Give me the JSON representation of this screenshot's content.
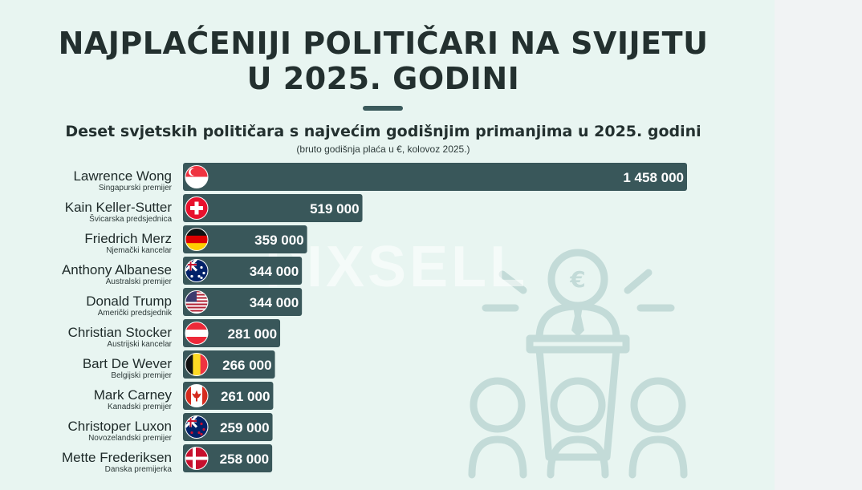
{
  "title_line1": "NAJPLAĆENIJI POLITIČARI NA SVIJETU",
  "title_line2": "U 2025. GODINI",
  "subtitle": "Deset svjetskih političara s najvećim godišnjim primanjima u 2025. godini",
  "note": "(bruto godišnja plaća u €, kolovoz 2025.)",
  "watermark": "PIXSELL",
  "colors": {
    "bar": "#39575a",
    "background": "#e8f5f1",
    "text": "#23302f",
    "decoration": "#c3dbd8"
  },
  "chart_data": {
    "type": "bar",
    "orientation": "horizontal",
    "categories": [
      "Lawrence Wong",
      "Kain Keller-Sutter",
      "Friedrich Merz",
      "Anthony Albanese",
      "Donald Trump",
      "Christian Stocker",
      "Bart De Wever",
      "Mark Carney",
      "Christoper Luxon",
      "Mette Frederiksen"
    ],
    "roles": [
      "Singapurski premijer",
      "Švicarska predsjednica",
      "Njemački kancelar",
      "Australski premijer",
      "Američki predsjednik",
      "Austrijski kancelar",
      "Belgijski premijer",
      "Kanadski premijer",
      "Novozelandski  premijer",
      "Danska premijerka"
    ],
    "values": [
      1458000,
      519000,
      359000,
      344000,
      344000,
      281000,
      266000,
      261000,
      259000,
      258000
    ],
    "value_labels": [
      "1 458 000",
      "519 000",
      "359 000",
      "344 000",
      "344 000",
      "281 000",
      "266 000",
      "261 000",
      "259 000",
      "258 000"
    ],
    "flags": [
      "singapore-flag",
      "switzerland-flag",
      "germany-flag",
      "australia-flag",
      "usa-flag",
      "austria-flag",
      "belgium-flag",
      "canada-flag",
      "new-zealand-flag",
      "denmark-flag"
    ],
    "xlim": [
      0,
      1458000
    ]
  }
}
